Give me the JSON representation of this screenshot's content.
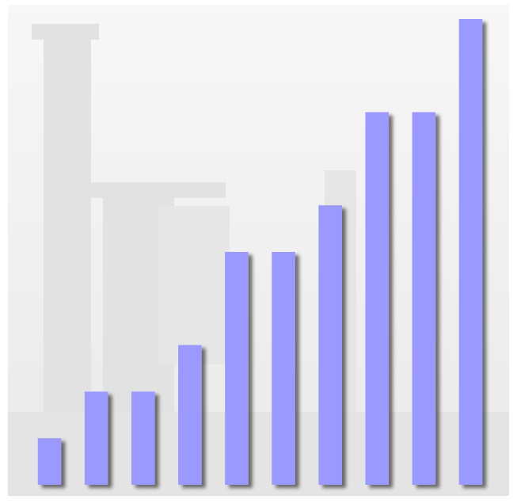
{
  "chart_data": {
    "type": "bar",
    "values": [
      1,
      2,
      2,
      3,
      5,
      5,
      6,
      8,
      8,
      10
    ],
    "color": "#9999ff",
    "ylim": [
      0,
      10
    ]
  }
}
